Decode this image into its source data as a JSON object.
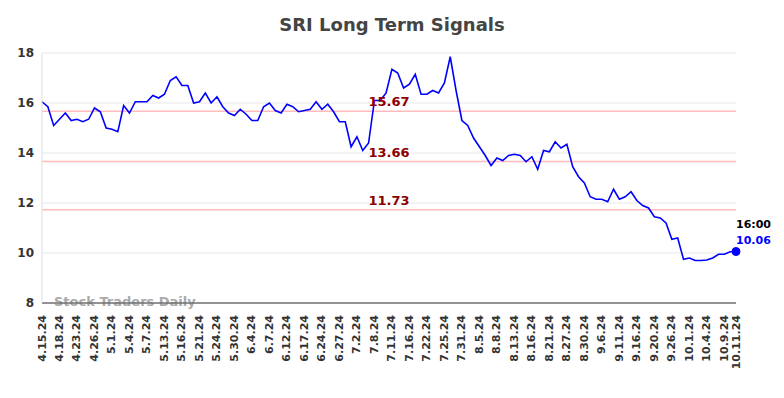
{
  "chart_data": {
    "type": "line",
    "title": "SRI Long Term Signals",
    "watermark": "Stock Traders Daily",
    "end_label": "16:00",
    "color": "#0000ff",
    "marker": "last",
    "grid": true,
    "ylim": [
      8,
      18
    ],
    "yticks": [
      8,
      10,
      12,
      14,
      16,
      18
    ],
    "reference_lines": [
      15.67,
      13.66,
      11.73
    ],
    "categories": [
      "4.15.24",
      null,
      null,
      "4.18.24",
      null,
      null,
      "4.23.24",
      null,
      null,
      "4.26.24",
      null,
      null,
      "5.1.24",
      null,
      null,
      "5.4.24",
      null,
      null,
      "5.7.24",
      null,
      null,
      "5.13.24",
      null,
      null,
      "5.16.24",
      null,
      null,
      "5.21.24",
      null,
      null,
      "5.24.24",
      null,
      null,
      "5.30.24",
      null,
      null,
      "6.4.24",
      null,
      null,
      "6.7.24",
      null,
      null,
      "6.12.24",
      null,
      null,
      "6.17.24",
      null,
      null,
      "6.24.24",
      null,
      null,
      "6.27.24",
      null,
      null,
      "7.2.24",
      null,
      null,
      "7.8.24",
      null,
      null,
      "7.11.24",
      null,
      null,
      "7.16.24",
      null,
      null,
      "7.22.24",
      null,
      null,
      "7.25.24",
      null,
      null,
      "7.31.24",
      null,
      null,
      "8.5.24",
      null,
      null,
      "8.8.24",
      null,
      null,
      "8.13.24",
      null,
      null,
      "8.16.24",
      null,
      null,
      "8.21.24",
      null,
      null,
      "8.27.24",
      null,
      null,
      "8.30.24",
      null,
      null,
      "9.6.24",
      null,
      null,
      "9.11.24",
      null,
      null,
      "9.16.24",
      null,
      null,
      "9.20.24",
      null,
      null,
      "9.26.24",
      null,
      null,
      "10.1.24",
      null,
      null,
      "10.4.24",
      null,
      null,
      "10.9.24",
      null,
      "10.11.24"
    ],
    "values": [
      16.05,
      15.85,
      15.1,
      15.35,
      15.6,
      15.3,
      15.35,
      15.25,
      15.35,
      15.8,
      15.65,
      15.0,
      14.95,
      14.85,
      15.9,
      15.6,
      16.05,
      16.05,
      16.05,
      16.3,
      16.2,
      16.35,
      16.9,
      17.05,
      16.7,
      16.7,
      16.0,
      16.05,
      16.4,
      16.0,
      16.25,
      15.85,
      15.6,
      15.5,
      15.75,
      15.55,
      15.3,
      15.3,
      15.85,
      16.0,
      15.7,
      15.6,
      15.95,
      15.85,
      15.65,
      15.7,
      15.75,
      16.05,
      15.75,
      15.95,
      15.65,
      15.25,
      15.25,
      14.25,
      14.65,
      14.1,
      14.4,
      16.1,
      16.1,
      16.4,
      17.35,
      17.2,
      16.6,
      16.75,
      17.15,
      16.35,
      16.35,
      16.5,
      16.4,
      16.8,
      17.85,
      16.5,
      15.3,
      15.1,
      14.6,
      14.25,
      13.9,
      13.5,
      13.8,
      13.7,
      13.9,
      13.95,
      13.9,
      13.65,
      13.85,
      13.35,
      14.1,
      14.05,
      14.45,
      14.2,
      14.35,
      13.45,
      13.05,
      12.8,
      12.25,
      12.15,
      12.15,
      12.05,
      12.55,
      12.15,
      12.25,
      12.45,
      12.1,
      11.9,
      11.8,
      11.45,
      11.4,
      11.2,
      10.55,
      10.6,
      9.75,
      9.8,
      9.7,
      9.7,
      9.72,
      9.8,
      9.95,
      9.95,
      10.05,
      10.06
    ]
  }
}
